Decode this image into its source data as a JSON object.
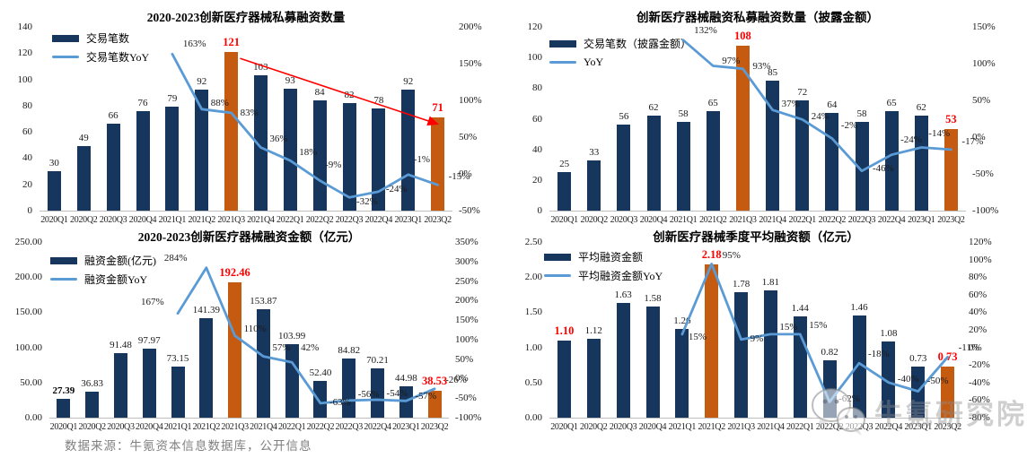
{
  "page": {
    "source_note": "数据来源：牛氪资本信息数据库，公开信息",
    "watermark_text": "牛氪研究院"
  },
  "colors": {
    "bar": "#17365D",
    "bar_highlight": "#C55A11",
    "yoy_line": "#5B9BD5",
    "red_label": "#FF0000",
    "trend_arrow": "#FF0000",
    "axis_line": "#BFBFBF",
    "source_text": "#808080"
  },
  "categories": [
    "2020Q1",
    "2020Q2",
    "2020Q3",
    "2020Q4",
    "2021Q1",
    "2021Q2",
    "2021Q3",
    "2021Q4",
    "2022Q1",
    "2022Q2",
    "2022Q3",
    "2022Q4",
    "2023Q1",
    "2023Q2"
  ],
  "chart_data": [
    {
      "type": "bar+line",
      "title": "2020-2023创新医疗器械私募融资数量",
      "legend": [
        {
          "label": "交易笔数",
          "marker": "bar"
        },
        {
          "label": "交易笔数YoY",
          "marker": "line"
        }
      ],
      "left_axis": {
        "labels": [
          "140",
          "120",
          "100",
          "80",
          "60",
          "40",
          "20",
          "0"
        ],
        "min": 0,
        "max": 140
      },
      "right_axis": {
        "labels": [
          "200%",
          "150%",
          "100%",
          "50%",
          "0%",
          "-50%"
        ],
        "min": -50,
        "max": 200
      },
      "bars": {
        "values": [
          30,
          49,
          66,
          76,
          79,
          92,
          121,
          103,
          93,
          84,
          82,
          78,
          92,
          71
        ],
        "labels": [
          "30",
          "49",
          "66",
          "76",
          "79",
          "92",
          "121",
          "103",
          "93",
          "84",
          "82",
          "78",
          "92",
          "71"
        ],
        "highlight_indices": [
          6,
          13
        ],
        "red_label_indices": [
          6,
          13
        ],
        "bold_label_indices": []
      },
      "yoy": {
        "start_index": 4,
        "values": [
          163,
          88,
          83,
          36,
          18,
          -9,
          -32,
          -24,
          -1,
          -15
        ],
        "labels": [
          "163%",
          "88%",
          "83%",
          "36%",
          "18%",
          "-9%",
          "-32%",
          "-24%",
          "-1%",
          "-15%"
        ]
      },
      "annotation_arrow": {
        "from_cat": 6.3,
        "from_val": 116,
        "to_cat": 13.0,
        "to_val": 66
      }
    },
    {
      "type": "bar+line",
      "title": "创新医疗器械融资私募融资数量（披露金额）",
      "legend": [
        {
          "label": "交易笔数（披露金额）",
          "marker": "bar"
        },
        {
          "label": "YoY",
          "marker": "line"
        }
      ],
      "left_axis": {
        "labels": [
          "120",
          "100",
          "80",
          "60",
          "40",
          "20",
          "0"
        ],
        "min": 0,
        "max": 120
      },
      "right_axis": {
        "labels": [
          "150%",
          "100%",
          "50%",
          "0%",
          "-50%",
          "-100%"
        ],
        "min": -100,
        "max": 150
      },
      "bars": {
        "values": [
          25,
          33,
          56,
          62,
          58,
          65,
          108,
          85,
          72,
          64,
          58,
          65,
          62,
          53
        ],
        "labels": [
          "25",
          "33",
          "56",
          "62",
          "58",
          "65",
          "108",
          "85",
          "72",
          "64",
          "58",
          "65",
          "62",
          "53"
        ],
        "highlight_indices": [
          6,
          13
        ],
        "red_label_indices": [
          6,
          13
        ],
        "bold_label_indices": []
      },
      "yoy": {
        "start_index": 4,
        "values": [
          132,
          97,
          93,
          37,
          24,
          -2,
          -46,
          -24,
          -14,
          -17
        ],
        "labels": [
          "132%",
          "97%",
          "93%",
          "37%",
          "24%",
          "-2%",
          "-46%",
          "-24%",
          "-14%",
          "-17%"
        ]
      }
    },
    {
      "type": "bar+line",
      "title": "2020-2023创新医疗器械融资金额（亿元）",
      "legend": [
        {
          "label": "融资金额(亿元)",
          "marker": "bar"
        },
        {
          "label": "融资金额YoY",
          "marker": "line"
        }
      ],
      "left_axis": {
        "labels": [
          "250.00",
          "200.00",
          "150.00",
          "100.00",
          "50.00",
          "0.00"
        ],
        "min": 0,
        "max": 250
      },
      "right_axis": {
        "labels": [
          "350%",
          "300%",
          "250%",
          "200%",
          "150%",
          "100%",
          "50%",
          "0%",
          "-50%",
          "-100%"
        ],
        "min": -100,
        "max": 350
      },
      "bars": {
        "values": [
          27.39,
          36.83,
          91.48,
          97.97,
          73.15,
          141.39,
          192.46,
          153.87,
          103.99,
          52.4,
          84.82,
          70.21,
          44.98,
          38.53
        ],
        "labels": [
          "27.39",
          "36.83",
          "91.48",
          "97.97",
          "73.15",
          "141.39",
          "192.46",
          "153.87",
          "103.99",
          "52.40",
          "84.82",
          "70.21",
          "44.98",
          "38.53"
        ],
        "highlight_indices": [
          6,
          13
        ],
        "red_label_indices": [
          6,
          13
        ],
        "bold_label_indices": [
          0
        ]
      },
      "yoy": {
        "start_index": 4,
        "values": [
          167,
          284,
          110,
          57,
          42,
          -63,
          -56,
          -54,
          -57,
          -26
        ],
        "labels": [
          "167%",
          "284%",
          "110%",
          "57%",
          "42%",
          "-63%",
          "-56%",
          "-54%",
          "-57%",
          "-26%"
        ]
      }
    },
    {
      "type": "bar+line",
      "title": "创新医疗器械季度平均融资额（亿元）",
      "legend": [
        {
          "label": "平均融资金额",
          "marker": "bar"
        },
        {
          "label": "平均融资金额YoY",
          "marker": "line"
        }
      ],
      "left_axis": {
        "labels": [
          "2.50",
          "2.00",
          "1.50",
          "1.00",
          "0.50",
          "0.00"
        ],
        "min": 0,
        "max": 2.5
      },
      "right_axis": {
        "labels": [
          "120%",
          "100%",
          "80%",
          "60%",
          "40%",
          "20%",
          "0%",
          "-20%",
          "-40%",
          "-60%",
          "-80%"
        ],
        "min": -80,
        "max": 120
      },
      "bars": {
        "values": [
          1.1,
          1.12,
          1.63,
          1.58,
          1.26,
          2.18,
          1.78,
          1.81,
          1.44,
          0.82,
          1.46,
          1.08,
          0.73,
          0.73
        ],
        "labels": [
          "1.10",
          "1.12",
          "1.63",
          "1.58",
          "1.26",
          "2.18",
          "1.78",
          "1.81",
          "1.44",
          "0.82",
          "1.46",
          "1.08",
          "0.73",
          "0.73"
        ],
        "highlight_indices": [
          5,
          13
        ],
        "red_label_indices": [
          0,
          5,
          13
        ],
        "bold_label_indices": []
      },
      "yoy": {
        "start_index": 4,
        "values": [
          15,
          95,
          9,
          15,
          15,
          -62,
          -18,
          -40,
          -50,
          -11
        ],
        "labels": [
          "15%",
          "95%",
          "9%",
          "15%",
          "15%",
          "-62%",
          "-18%",
          "-40%",
          "-50%",
          "-11%"
        ]
      }
    }
  ]
}
